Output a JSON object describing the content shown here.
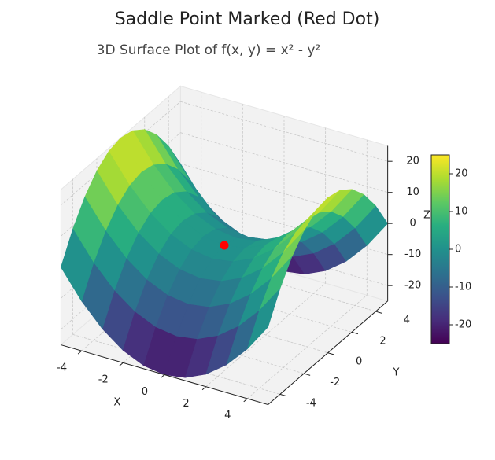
{
  "chart_data": {
    "type": "surface3d",
    "title": "Saddle Point Marked (Red Dot)",
    "subtitle": "3D Surface Plot of f(x, y) = x² - y²",
    "x_label": "X",
    "y_label": "Y",
    "z_label": "Z",
    "x": [
      -5,
      -4,
      -3,
      -2,
      -1,
      0,
      1,
      2,
      3,
      4,
      5
    ],
    "y": [
      -5,
      -4,
      -3,
      -2,
      -1,
      0,
      1,
      2,
      3,
      4,
      5
    ],
    "z": [
      [
        0,
        -9,
        -16,
        -21,
        -24,
        -25,
        -24,
        -21,
        -16,
        -9,
        0
      ],
      [
        9,
        0,
        -7,
        -12,
        -15,
        -16,
        -15,
        -12,
        -7,
        0,
        9
      ],
      [
        16,
        7,
        0,
        -5,
        -8,
        -9,
        -8,
        -5,
        0,
        7,
        16
      ],
      [
        21,
        12,
        5,
        0,
        -3,
        -4,
        -3,
        0,
        5,
        12,
        21
      ],
      [
        24,
        15,
        8,
        3,
        0,
        -1,
        0,
        3,
        8,
        15,
        24
      ],
      [
        25,
        16,
        9,
        4,
        1,
        0,
        1,
        4,
        9,
        16,
        25
      ],
      [
        24,
        15,
        8,
        3,
        0,
        -1,
        0,
        3,
        8,
        15,
        24
      ],
      [
        21,
        12,
        5,
        0,
        -3,
        -4,
        -3,
        0,
        5,
        12,
        21
      ],
      [
        16,
        7,
        0,
        -5,
        -8,
        -9,
        -8,
        -5,
        0,
        7,
        16
      ],
      [
        9,
        0,
        -7,
        -12,
        -15,
        -16,
        -15,
        -12,
        -7,
        0,
        9
      ],
      [
        0,
        -9,
        -16,
        -21,
        -24,
        -25,
        -24,
        -21,
        -16,
        -9,
        0
      ]
    ],
    "xlim": [
      -5,
      5
    ],
    "ylim": [
      -5,
      5
    ],
    "zlim": [
      -25,
      25
    ],
    "xticks": [
      -4,
      -2,
      0,
      2,
      4
    ],
    "yticks": [
      -4,
      -2,
      0,
      2,
      4
    ],
    "zticks": [
      -20,
      -10,
      0,
      10,
      20
    ],
    "cmap": "viridis",
    "clim": [
      -25,
      25
    ],
    "cticks": [
      -20,
      -10,
      0,
      10,
      20
    ],
    "grid": true,
    "saddle_point": {
      "x": 0,
      "y": 0,
      "z": 0,
      "color": "#ff0000"
    }
  }
}
